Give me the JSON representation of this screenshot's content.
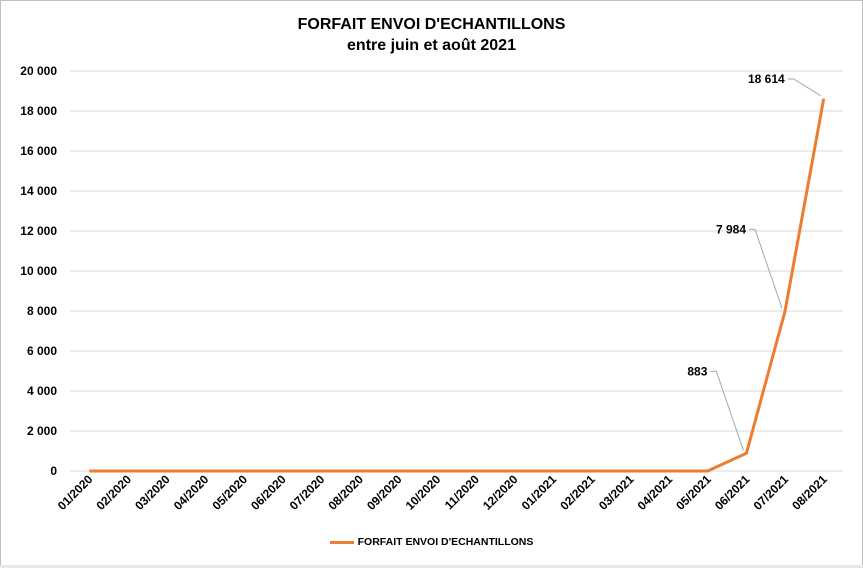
{
  "chart_data": {
    "type": "line",
    "title": "FORFAIT ENVOI D'ECHANTILLONS",
    "subtitle": "entre juin et août 2021",
    "categories": [
      "01/2020",
      "02/2020",
      "03/2020",
      "04/2020",
      "05/2020",
      "06/2020",
      "07/2020",
      "08/2020",
      "09/2020",
      "10/2020",
      "11/2020",
      "12/2020",
      "01/2021",
      "02/2021",
      "03/2021",
      "04/2021",
      "05/2021",
      "06/2021",
      "07/2021",
      "08/2021"
    ],
    "series": [
      {
        "name": "FORFAIT ENVOI D'ECHANTILLONS",
        "values": [
          0,
          0,
          0,
          0,
          0,
          0,
          0,
          0,
          0,
          0,
          0,
          0,
          0,
          0,
          0,
          0,
          0,
          883,
          7984,
          18614
        ],
        "color": "#ed7d31"
      }
    ],
    "yticks": [
      "0",
      "2 000",
      "4 000",
      "6 000",
      "8 000",
      "10 000",
      "12 000",
      "14 000",
      "16 000",
      "18 000",
      "20 000"
    ],
    "ylim": [
      0,
      20000
    ],
    "grid": true,
    "legend": "bottom",
    "data_labels": [
      {
        "index": 17,
        "text": "883"
      },
      {
        "index": 18,
        "text": "7 984"
      },
      {
        "index": 19,
        "text": "18 614"
      }
    ]
  }
}
